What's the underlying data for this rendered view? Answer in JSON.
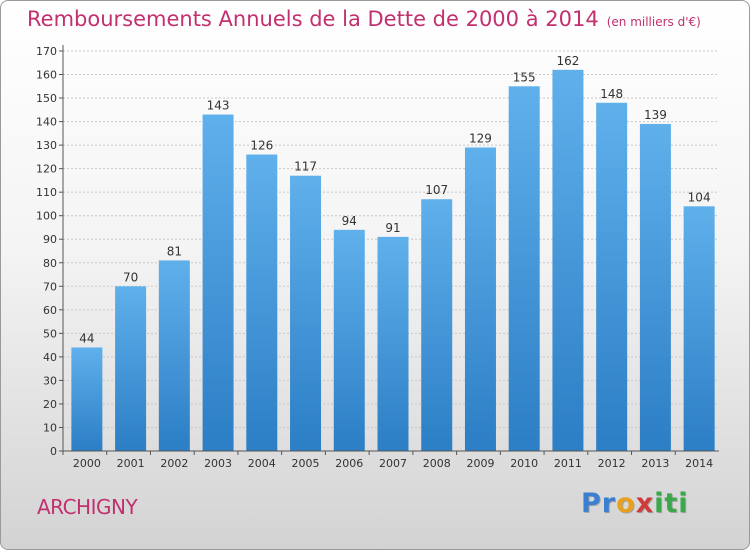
{
  "chart_data": {
    "type": "bar",
    "title": "Remboursements Annuels de la Dette de 2000 à 2014",
    "subtitle": "(en milliers d'€)",
    "categories": [
      "2000",
      "2001",
      "2002",
      "2003",
      "2004",
      "2005",
      "2006",
      "2007",
      "2008",
      "2009",
      "2010",
      "2011",
      "2012",
      "2013",
      "2014"
    ],
    "values": [
      44,
      70,
      81,
      143,
      126,
      117,
      94,
      91,
      107,
      129,
      155,
      162,
      148,
      139,
      104
    ],
    "ylim": [
      0,
      170
    ],
    "yticks": [
      0,
      10,
      20,
      30,
      40,
      50,
      60,
      70,
      80,
      90,
      100,
      110,
      120,
      130,
      140,
      150,
      160,
      170
    ],
    "xlabel": "",
    "ylabel": "",
    "grid": true,
    "data_labels": true
  },
  "footer": {
    "town": "ARCHIGNY",
    "brand_letters": [
      "P",
      "r",
      "o",
      "x",
      "i",
      "t",
      "i"
    ]
  },
  "colors": {
    "title": "#c2306f",
    "bar_top": "#5fb0eb",
    "bar_bottom": "#2c7ec5",
    "grid": "#c8c8c8",
    "axis": "#555555",
    "brand": [
      "#3a7fd0",
      "#3a7fd0",
      "#e8a020",
      "#d23a3a",
      "#3aa84a",
      "#3aa84a",
      "#3aa84a"
    ]
  }
}
